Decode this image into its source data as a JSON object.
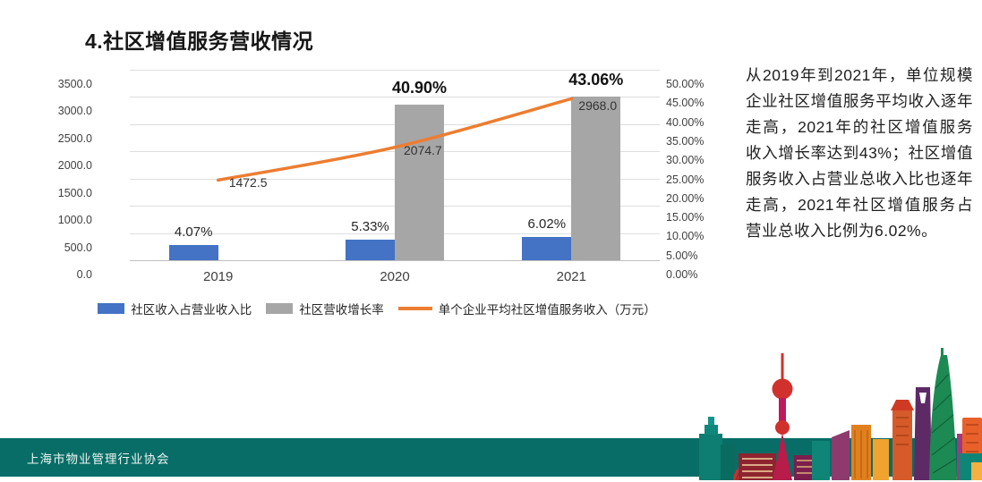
{
  "title": "4.社区增值服务营收情况",
  "commentary": "从2019年到2021年，单位规模企业社区增值服务平均收入逐年走高，2021年的社区增值服务收入增长率达到43%；社区增值服务收入占营业总收入比也逐年走高，2021年社区增值服务占营业总收入比例为6.02%。",
  "footer": {
    "org": "上海市物业管理行业协会",
    "color": "#076d66"
  },
  "chart_data": {
    "type": "bar+line combo",
    "categories": [
      "2019",
      "2020",
      "2021"
    ],
    "series": [
      {
        "name": "社区收入占营业收入比",
        "type": "bar",
        "axis": "right",
        "unit": "%",
        "values": [
          4.07,
          5.33,
          6.02
        ],
        "labels": [
          "4.07%",
          "5.33%",
          "6.02%"
        ],
        "color": "#4472C4"
      },
      {
        "name": "社区营收增长率",
        "type": "bar",
        "axis": "right",
        "unit": "%",
        "values": [
          null,
          40.9,
          43.06
        ],
        "labels": [
          null,
          "40.90%",
          "43.06%"
        ],
        "color": "#A6A6A6"
      },
      {
        "name": "单个企业平均社区增值服务收入（万元）",
        "type": "line",
        "axis": "left",
        "unit": "万元",
        "values": [
          1472.5,
          2074.7,
          2968.0
        ],
        "labels": [
          "1472.5",
          "2074.7",
          "2968.0"
        ],
        "color": "#ED7D31"
      }
    ],
    "left_axis": {
      "min": 0,
      "max": 3500,
      "step": 500,
      "ticks": [
        "3500.0",
        "3000.0",
        "2500.0",
        "2000.0",
        "1500.0",
        "1000.0",
        "500.0",
        "0.0"
      ]
    },
    "right_axis": {
      "min": 0,
      "max": 50,
      "step": 5,
      "ticks": [
        "50.00%",
        "45.00%",
        "40.00%",
        "35.00%",
        "30.00%",
        "25.00%",
        "20.00%",
        "15.00%",
        "10.00%",
        "5.00%",
        "0.00%"
      ]
    },
    "grid": "horizontal-major",
    "legend_position": "bottom"
  }
}
